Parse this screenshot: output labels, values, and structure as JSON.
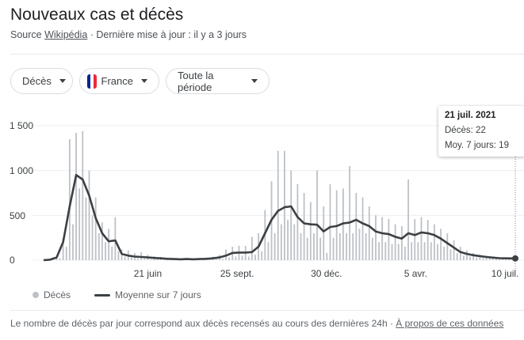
{
  "header": {
    "title": "Nouveaux cas et décès",
    "source_prefix": "Source",
    "source_link": "Wikipédia",
    "updated": "· Dernière mise à jour : il y a 3 jours"
  },
  "filters": {
    "metric": "Décès",
    "country": "France",
    "country_flag_colors": [
      "#002395",
      "#ffffff",
      "#ed2939"
    ],
    "period": "Toute la période"
  },
  "chart_data": {
    "type": "bar",
    "x_start": "2020-03-01",
    "x_end": "2021-07-21",
    "ylim": [
      0,
      1500
    ],
    "yticks": [
      "0",
      "500",
      "1 000",
      "1 500"
    ],
    "ytick_values": [
      0,
      500,
      1000,
      1500
    ],
    "xticks": [
      {
        "label": "21 juin",
        "date": "2020-06-21"
      },
      {
        "label": "25 sept.",
        "date": "2020-09-25"
      },
      {
        "label": "30 déc.",
        "date": "2020-12-30"
      },
      {
        "label": "5 avr.",
        "date": "2021-04-05"
      },
      {
        "label": "10 juil.",
        "date": "2021-07-10"
      }
    ],
    "grid": true,
    "colors": {
      "bars": "#bdc1c6",
      "line": "#3c4043"
    },
    "series": [
      {
        "name": "Décès",
        "type": "bar",
        "step_days": 3.5,
        "values": [
          0,
          0,
          5,
          2,
          40,
          20,
          250,
          150,
          1350,
          400,
          1420,
          800,
          1440,
          700,
          1000,
          500,
          700,
          300,
          420,
          200,
          350,
          150,
          480,
          100,
          120,
          40,
          110,
          30,
          80,
          20,
          90,
          15,
          60,
          10,
          40,
          10,
          35,
          5,
          25,
          5,
          20,
          5,
          20,
          5,
          25,
          5,
          20,
          5,
          25,
          5,
          30,
          5,
          40,
          10,
          60,
          15,
          120,
          30,
          150,
          40,
          160,
          50,
          160,
          40,
          260,
          60,
          300,
          100,
          560,
          200,
          880,
          300,
          1220,
          400,
          1220,
          450,
          1000,
          400,
          850,
          300,
          750,
          250,
          650,
          300,
          1000,
          250,
          600,
          80,
          850,
          250,
          780,
          300,
          800,
          300,
          1050,
          300,
          750,
          350,
          700,
          300,
          600,
          250,
          500,
          200,
          480,
          200,
          460,
          180,
          400,
          180,
          380,
          150,
          900,
          200,
          460,
          200,
          480,
          200,
          450,
          200,
          400,
          180,
          350,
          150,
          300,
          120,
          220,
          80,
          150,
          50,
          110,
          40,
          80,
          30,
          60,
          25,
          50,
          20,
          40,
          15,
          30,
          15,
          30,
          10,
          25,
          15,
          22
        ]
      },
      {
        "name": "Moyenne sur 7 jours",
        "type": "line",
        "step_days": 7,
        "values": [
          0,
          5,
          30,
          200,
          600,
          950,
          900,
          720,
          470,
          300,
          210,
          220,
          70,
          50,
          40,
          35,
          30,
          25,
          20,
          15,
          12,
          10,
          12,
          10,
          12,
          15,
          20,
          30,
          50,
          80,
          85,
          85,
          90,
          150,
          300,
          450,
          550,
          590,
          600,
          480,
          410,
          400,
          395,
          320,
          370,
          380,
          410,
          420,
          450,
          410,
          380,
          320,
          300,
          290,
          260,
          240,
          300,
          280,
          310,
          300,
          280,
          240,
          190,
          140,
          90,
          70,
          55,
          45,
          35,
          28,
          22,
          20,
          19,
          19
        ]
      }
    ],
    "legend": "bottom-left",
    "tooltip": {
      "date": "21 juil. 2021",
      "deaths": "Décès: 22",
      "avg": "Moy. 7 jours: 19"
    }
  },
  "legend": {
    "deaths": "Décès",
    "avg": "Moyenne sur 7 jours"
  },
  "footer": {
    "note": "Le nombre de décès par jour correspond aux décès recensés au cours des dernières 24h",
    "sep": " · ",
    "link": "À propos de ces données"
  }
}
